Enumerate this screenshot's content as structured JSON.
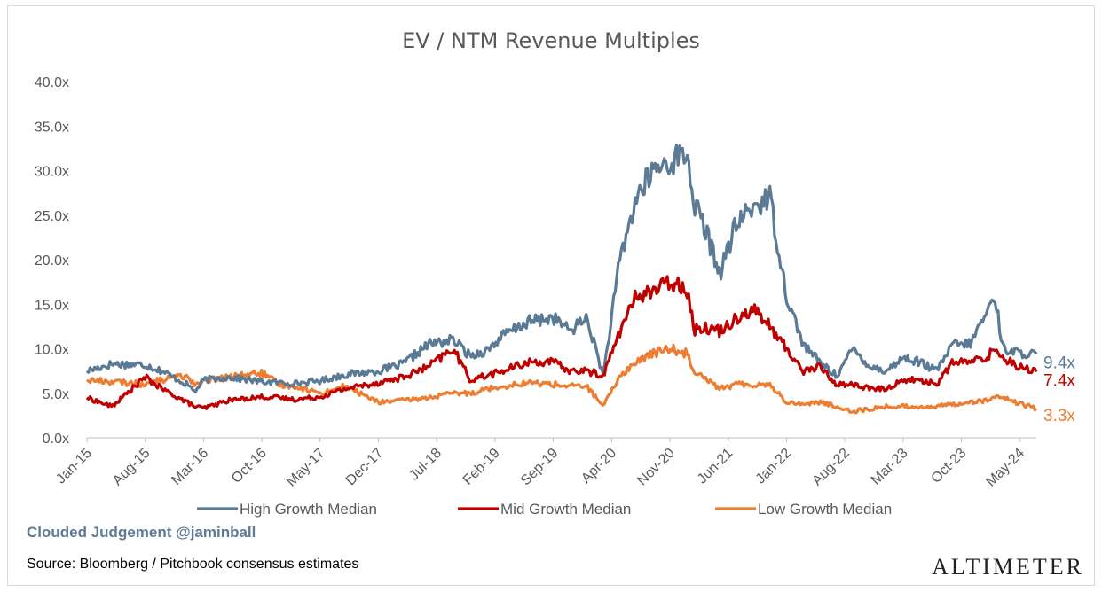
{
  "chart_data": {
    "type": "line",
    "title": "EV / NTM Revenue Multiples",
    "xlabel": "",
    "ylabel": "",
    "ylim": [
      0,
      40
    ],
    "yticks": [
      "0.0x",
      "5.0x",
      "10.0x",
      "15.0x",
      "20.0x",
      "25.0x",
      "30.0x",
      "35.0x",
      "40.0x"
    ],
    "x_tick_labels": [
      "Jan-15",
      "Aug-15",
      "Mar-16",
      "Oct-16",
      "May-17",
      "Dec-17",
      "Jul-18",
      "Feb-19",
      "Sep-19",
      "Apr-20",
      "Nov-20",
      "Jun-21",
      "Jan-22",
      "Aug-22",
      "Mar-23",
      "Oct-23",
      "May-24"
    ],
    "grid": false,
    "legend_placement": "bottom",
    "x": [
      "2015-01",
      "2015-04",
      "2015-08",
      "2015-10",
      "2016-01",
      "2016-02",
      "2016-03",
      "2016-06",
      "2016-10",
      "2016-12",
      "2017-02",
      "2017-05",
      "2017-08",
      "2017-12",
      "2018-03",
      "2018-06",
      "2018-09",
      "2018-11",
      "2019-01",
      "2019-03",
      "2019-06",
      "2019-09",
      "2019-11",
      "2020-01",
      "2020-03",
      "2020-05",
      "2020-07",
      "2020-09",
      "2020-11",
      "2021-01",
      "2021-02",
      "2021-03",
      "2021-05",
      "2021-07",
      "2021-09",
      "2021-11",
      "2022-01",
      "2022-03",
      "2022-05",
      "2022-07",
      "2022-09",
      "2022-11",
      "2023-01",
      "2023-03",
      "2023-05",
      "2023-07",
      "2023-09",
      "2023-11",
      "2024-01",
      "2024-02",
      "2024-03",
      "2024-05",
      "2024-07"
    ],
    "series": [
      {
        "name": "High Growth Median",
        "color": "#5b7a95",
        "end_label": "9.4x",
        "values": [
          7.5,
          8.3,
          8.2,
          7.5,
          6.0,
          5.2,
          6.5,
          6.8,
          6.3,
          6.2,
          6.1,
          6.4,
          7.1,
          7.5,
          8.3,
          10.5,
          11.0,
          9.2,
          9.8,
          11.5,
          13.0,
          13.5,
          12.0,
          13.5,
          7.0,
          20.0,
          27.0,
          30.0,
          31.0,
          32.0,
          26.0,
          24.0,
          18.5,
          24.0,
          26.0,
          27.0,
          16.0,
          10.5,
          8.5,
          7.0,
          10.0,
          8.0,
          7.5,
          9.0,
          8.5,
          7.5,
          10.5,
          10.5,
          14.0,
          16.0,
          10.0,
          9.5,
          9.4
        ]
      },
      {
        "name": "Mid Growth Median",
        "color": "#c00000",
        "end_label": "7.4x",
        "values": [
          4.5,
          3.5,
          6.8,
          5.5,
          4.0,
          3.5,
          3.3,
          4.2,
          4.6,
          4.5,
          4.3,
          4.6,
          5.5,
          6.2,
          6.8,
          8.0,
          10.0,
          6.5,
          7.0,
          7.5,
          8.5,
          8.5,
          7.5,
          7.5,
          7.0,
          12.0,
          16.0,
          16.5,
          17.5,
          17.0,
          12.0,
          12.5,
          12.0,
          13.5,
          14.5,
          12.5,
          10.0,
          7.5,
          8.0,
          6.0,
          6.0,
          5.5,
          5.5,
          6.5,
          6.5,
          6.0,
          8.5,
          8.5,
          9.0,
          10.0,
          9.0,
          8.0,
          7.4
        ]
      },
      {
        "name": "Low Growth Median",
        "color": "#ed7d31",
        "end_label": "3.3x",
        "values": [
          6.5,
          6.3,
          6.0,
          6.5,
          7.0,
          6.0,
          6.3,
          6.8,
          7.3,
          6.0,
          5.8,
          5.0,
          5.8,
          4.0,
          4.2,
          4.5,
          5.0,
          5.0,
          5.5,
          5.8,
          6.2,
          6.0,
          5.8,
          5.8,
          3.5,
          7.0,
          8.5,
          9.5,
          10.0,
          9.5,
          7.5,
          7.0,
          5.5,
          6.0,
          6.0,
          6.0,
          4.0,
          3.8,
          4.0,
          3.5,
          3.0,
          3.2,
          3.5,
          3.5,
          3.5,
          3.5,
          3.8,
          4.0,
          4.2,
          4.5,
          4.5,
          3.8,
          3.3
        ]
      }
    ]
  },
  "footer": {
    "watermark": "Clouded Judgement @jaminball",
    "source": "Source: Bloomberg / Pitchbook consensus estimates",
    "brand": "ALTIMETER"
  }
}
